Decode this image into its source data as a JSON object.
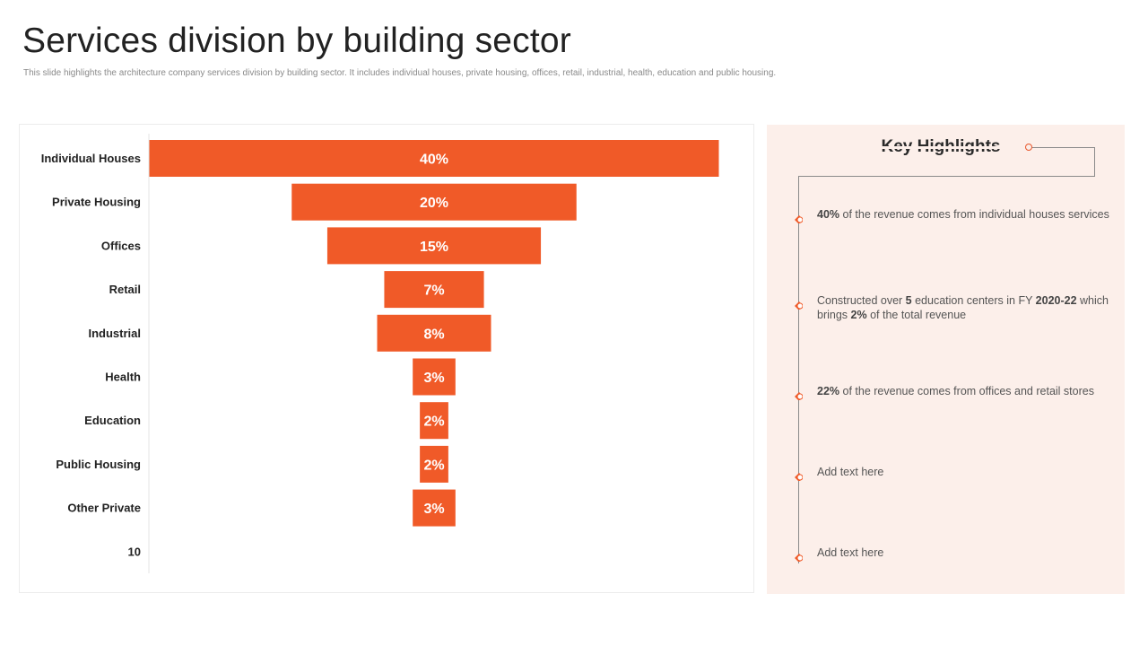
{
  "slide": {
    "title": "Services division by building sector",
    "subtitle": "This slide highlights the architecture company services division by building sector. It includes individual houses, private housing, offices, retail, industrial, health, education and public housing."
  },
  "chart_data": {
    "type": "bar",
    "orientation": "horizontal-funnel",
    "categories": [
      "Individual Houses",
      "Private Housing",
      "Offices",
      "Retail",
      "Industrial",
      "Health",
      "Education",
      "Public Housing",
      "Other Private",
      "10"
    ],
    "values": [
      40,
      20,
      15,
      7,
      8,
      3,
      2,
      2,
      3,
      null
    ],
    "labels": [
      "40%",
      "20%",
      "15%",
      "7%",
      "8%",
      "3%",
      "2%",
      "2%",
      "3%",
      ""
    ],
    "bar_color": "#f05a28",
    "grid": false,
    "legend": "none"
  },
  "highlights": {
    "title": "Key Highlights",
    "items": [
      {
        "segments": [
          {
            "t": "40%",
            "b": true
          },
          {
            "t": " of the revenue  comes from individual  houses services",
            "b": false
          }
        ]
      },
      {
        "segments": [
          {
            "t": "Constructed over  ",
            "b": false
          },
          {
            "t": "5",
            "b": true
          },
          {
            "t": " education centers in FY ",
            "b": false
          },
          {
            "t": "2020-22",
            "b": true
          },
          {
            "t": " which brings ",
            "b": false
          },
          {
            "t": "2%",
            "b": true
          },
          {
            "t": "  of the total revenue",
            "b": false
          }
        ]
      },
      {
        "segments": [
          {
            "t": "22%",
            "b": true
          },
          {
            "t": "  of the revenue  comes from offices and retail stores",
            "b": false
          }
        ]
      },
      {
        "segments": [
          {
            "t": "Add text here",
            "b": false
          }
        ]
      },
      {
        "segments": [
          {
            "t": "Add text here",
            "b": false
          }
        ]
      }
    ]
  },
  "colors": {
    "accent": "#f05a28",
    "panel_bg": "#fcefea",
    "line": "#8a8a8a"
  },
  "icons": {
    "bullet": "diamond-ring-bullet-icon",
    "arrow": "arrow-left-icon"
  }
}
